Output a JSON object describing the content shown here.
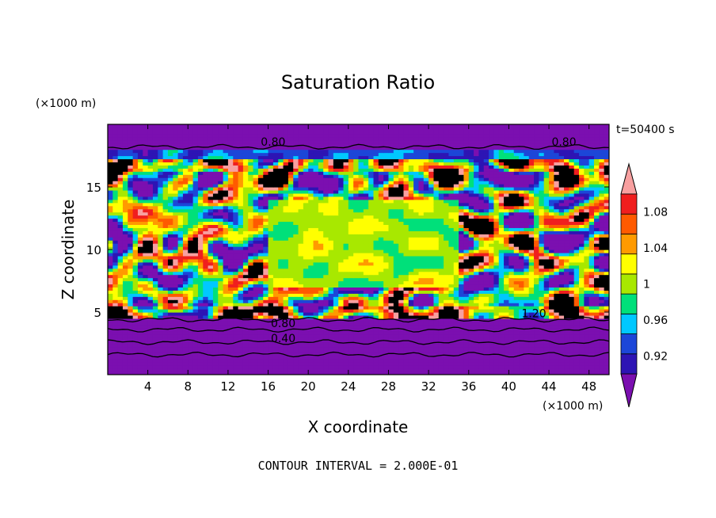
{
  "chart_data": {
    "type": "heatmap",
    "title": "Saturation Ratio",
    "xlabel": "X coordinate",
    "ylabel": "Z coordinate",
    "x_unit": "(×1000 m)",
    "y_unit": "(×1000 m)",
    "time_label": "t=50400 s",
    "footer": "CONTOUR INTERVAL = 2.000E-01",
    "xlim": [
      0,
      50
    ],
    "ylim": [
      0,
      20
    ],
    "x_ticks": [
      4,
      8,
      12,
      16,
      20,
      24,
      28,
      32,
      36,
      40,
      44,
      48
    ],
    "y_ticks": [
      5,
      10,
      15
    ],
    "colorbar": {
      "levels": [
        0.9,
        0.92,
        0.94,
        0.96,
        0.98,
        1.0,
        1.02,
        1.04,
        1.06,
        1.08,
        1.1
      ],
      "tick_labels": [
        "0.92",
        "0.96",
        "1",
        "1.04",
        "1.08"
      ],
      "tick_values": [
        0.92,
        0.96,
        1.0,
        1.04,
        1.08
      ],
      "colors": [
        "#7b0fb0",
        "#2d14b4",
        "#1c46d8",
        "#00c8ff",
        "#00e07a",
        "#a8e800",
        "#ffff00",
        "#ff9a00",
        "#ff5a00",
        "#f01e1e",
        "#f8a0a0"
      ],
      "extend": "both"
    },
    "contour_labels": [
      {
        "text": "0.80",
        "x": 16.5,
        "y": 18.6
      },
      {
        "text": "0.80",
        "x": 45.5,
        "y": 18.6
      },
      {
        "text": "0.80",
        "x": 17.5,
        "y": 4.1
      },
      {
        "text": "0.40",
        "x": 17.5,
        "y": 2.9
      },
      {
        "text": "1.20",
        "x": 42.5,
        "y": 4.9
      }
    ]
  }
}
